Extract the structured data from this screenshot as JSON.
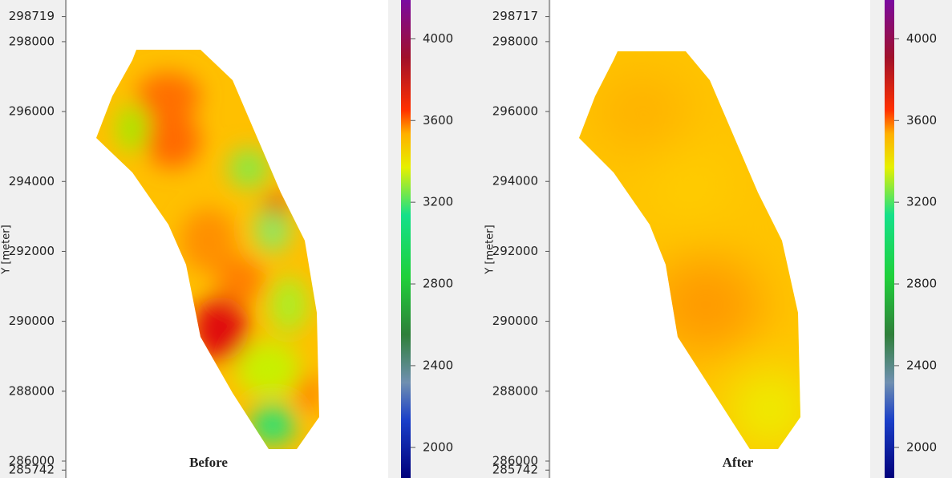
{
  "chart_data": [
    {
      "type": "heatmap",
      "title": "Before",
      "ylabel": "Y [meter]",
      "ylim": [
        285742,
        298719
      ],
      "yticks": [
        285742,
        286000,
        288000,
        290000,
        292000,
        294000,
        296000,
        298000,
        298719
      ],
      "clim": [
        1850,
        4190
      ],
      "cticks": [
        2000,
        2400,
        2800,
        3200,
        3600,
        4000
      ]
    },
    {
      "type": "heatmap",
      "title": "After",
      "ylabel": "Y [meter]",
      "ylim": [
        285742,
        298717
      ],
      "yticks": [
        285742,
        286000,
        288000,
        290000,
        292000,
        294000,
        296000,
        298000,
        298717
      ],
      "clim": [
        1850,
        4190
      ],
      "cticks": [
        2000,
        2400,
        2800,
        3200,
        3600,
        4000
      ]
    }
  ]
}
